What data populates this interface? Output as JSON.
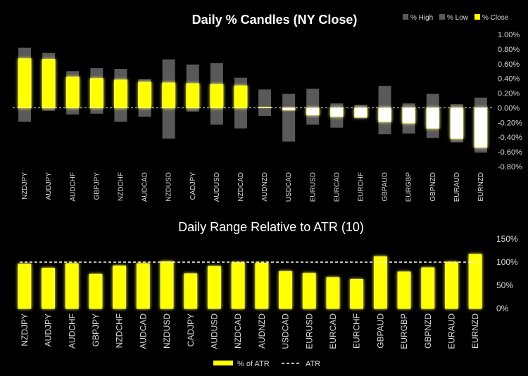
{
  "colors": {
    "background": "#000000",
    "range": "#595959",
    "positive": "#ffff00",
    "negative": "#ffffff",
    "glow": "#ffff66",
    "text": "#d9d9d9",
    "atr_line": "#ffffff"
  },
  "chart_data": [
    {
      "type": "bar",
      "title": "Daily % Candles (NY Close)",
      "categories": [
        "NZDJPY",
        "AUDJPY",
        "AUDCHF",
        "GBPJPY",
        "NZDCHF",
        "AUDCAD",
        "NZDUSD",
        "CADJPY",
        "AUDUSD",
        "NZDCAD",
        "AUDNZD",
        "USDCAD",
        "EURUSD",
        "EURCAD",
        "EURCHF",
        "GBPAUD",
        "EURGBP",
        "GBPNZD",
        "EURAUD",
        "EURNZD"
      ],
      "series": [
        {
          "name": "% High",
          "values": [
            0.82,
            0.75,
            0.5,
            0.54,
            0.53,
            0.39,
            0.66,
            0.59,
            0.61,
            0.41,
            0.25,
            0.19,
            0.26,
            0.06,
            0.04,
            0.3,
            0.06,
            0.19,
            0.05,
            0.14
          ]
        },
        {
          "name": "% Low",
          "values": [
            -0.19,
            -0.04,
            -0.09,
            -0.08,
            -0.19,
            -0.12,
            -0.42,
            -0.05,
            -0.23,
            -0.28,
            -0.11,
            -0.46,
            -0.23,
            -0.27,
            -0.14,
            -0.36,
            -0.35,
            -0.41,
            -0.47,
            -0.61
          ]
        },
        {
          "name": "% Close",
          "values": [
            0.67,
            0.66,
            0.42,
            0.4,
            0.38,
            0.35,
            0.34,
            0.33,
            0.32,
            0.3,
            0.01,
            -0.03,
            -0.1,
            -0.12,
            -0.13,
            -0.19,
            -0.21,
            -0.28,
            -0.42,
            -0.54
          ]
        }
      ],
      "ylim": [
        -0.8,
        1.0
      ],
      "yticks": [
        "1.00%",
        "0.80%",
        "0.60%",
        "0.40%",
        "0.20%",
        "0.00%",
        "-0.20%",
        "-0.40%",
        "-0.60%",
        "-0.80%"
      ],
      "legend": [
        "% High",
        "% Low",
        "% Close"
      ],
      "legend_position": "top-right"
    },
    {
      "type": "bar",
      "title": "Daily Range Relative to ATR (10)",
      "categories": [
        "NZDJPY",
        "AUDJPY",
        "AUDCHF",
        "GBPJPY",
        "NZDCHF",
        "AUDCAD",
        "NZDUSD",
        "CADJPY",
        "AUDUSD",
        "NZDCAD",
        "AUDNZD",
        "USDCAD",
        "EURUSD",
        "EURCAD",
        "EURCHF",
        "GBPAUD",
        "EURGBP",
        "GBPNZD",
        "EURAUD",
        "EURNZD"
      ],
      "series": [
        {
          "name": "% of ATR",
          "values": [
            96,
            87,
            97,
            74,
            92,
            97,
            101,
            75,
            91,
            99,
            98,
            80,
            76,
            67,
            63,
            112,
            79,
            88,
            100,
            117
          ]
        }
      ],
      "atr_reference": 100,
      "ylim": [
        0,
        150
      ],
      "yticks": [
        "150%",
        "100%",
        "50%",
        "0%"
      ],
      "legend": [
        "% of ATR",
        "ATR"
      ],
      "legend_position": "bottom"
    }
  ]
}
